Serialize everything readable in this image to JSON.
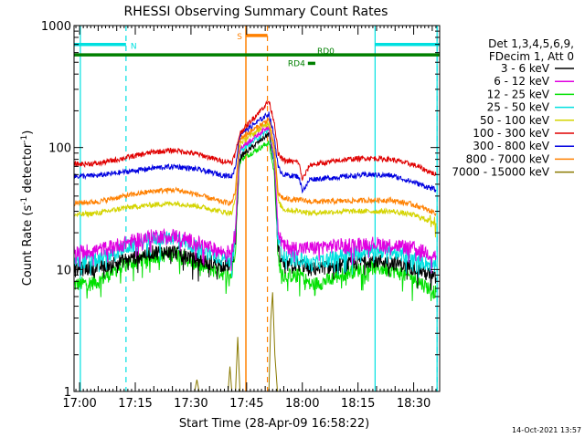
{
  "chart_data": {
    "type": "line",
    "title": "RHESSI Observing Summary Count Rates",
    "xlabel": "Start Time (28-Apr-09 16:58:22)",
    "ylabel": "Count Rate (s⁻¹ detector⁻¹)",
    "ylabel_main": "Count Rate (s",
    "ylabel_sup1": "-1",
    "ylabel_mid": " detector",
    "ylabel_sup2": "-1",
    "ylabel_end": ")",
    "yscale": "log",
    "ylim": [
      1,
      1000
    ],
    "xlim_minutes": [
      -1.5,
      97
    ],
    "x_ticks": [
      {
        "label": "17:00",
        "m": 0
      },
      {
        "label": "17:15",
        "m": 15
      },
      {
        "label": "17:30",
        "m": 30
      },
      {
        "label": "17:45",
        "m": 45
      },
      {
        "label": "18:00",
        "m": 60
      },
      {
        "label": "18:15",
        "m": 75
      },
      {
        "label": "18:30",
        "m": 90
      }
    ],
    "y_ticks": [
      {
        "label": "1",
        "v": 1
      },
      {
        "label": "10",
        "v": 10
      },
      {
        "label": "100",
        "v": 100
      },
      {
        "label": "1000",
        "v": 1000
      }
    ],
    "legend": {
      "placement": "right",
      "header": [
        "Det 1,3,4,5,6,9,",
        "FDecim 1, Att 0"
      ],
      "entries": [
        {
          "label": "3 - 6 keV",
          "color": "#000000"
        },
        {
          "label": "6 - 12 keV",
          "color": "#e000e0"
        },
        {
          "label": "12 - 25 keV",
          "color": "#00e000"
        },
        {
          "label": "25 - 50 keV",
          "color": "#00e0e0"
        },
        {
          "label": "50 - 100 keV",
          "color": "#d4d400"
        },
        {
          "label": "100 - 300 keV",
          "color": "#e00000"
        },
        {
          "label": "300 - 800 keV",
          "color": "#0000e0"
        },
        {
          "label": "800 - 7000 keV",
          "color": "#ff8000"
        },
        {
          "label": "7000 - 15000 keV",
          "color": "#8a7a00"
        }
      ]
    },
    "series": [
      {
        "color": "#00e000",
        "values": [
          [
            -1.5,
            7.5
          ],
          [
            5,
            8
          ],
          [
            12,
            11
          ],
          [
            20,
            13
          ],
          [
            26,
            13.5
          ],
          [
            32,
            11
          ],
          [
            38,
            9.5
          ],
          [
            41,
            9
          ],
          [
            42,
            16
          ],
          [
            43,
            70
          ],
          [
            43.5,
            80
          ],
          [
            51,
            110
          ],
          [
            52.5,
            60
          ],
          [
            53.5,
            12
          ],
          [
            55,
            9
          ],
          [
            60,
            9
          ],
          [
            62,
            7.5
          ],
          [
            66,
            8
          ],
          [
            72,
            9.5
          ],
          [
            78,
            10.5
          ],
          [
            84,
            10
          ],
          [
            90,
            8.5
          ],
          [
            96,
            6.5
          ]
        ]
      },
      {
        "color": "#000000",
        "values": [
          [
            -1.5,
            10
          ],
          [
            5,
            10.5
          ],
          [
            12,
            12
          ],
          [
            20,
            14
          ],
          [
            26,
            14
          ],
          [
            32,
            12
          ],
          [
            38,
            11
          ],
          [
            41,
            11
          ],
          [
            42,
            18
          ],
          [
            43,
            75
          ],
          [
            43.5,
            85
          ],
          [
            51,
            130
          ],
          [
            52.5,
            70
          ],
          [
            53.5,
            14
          ],
          [
            55,
            11
          ],
          [
            60,
            11
          ],
          [
            62,
            10
          ],
          [
            66,
            10.5
          ],
          [
            72,
            11
          ],
          [
            78,
            12
          ],
          [
            84,
            11.5
          ],
          [
            90,
            10.5
          ],
          [
            96,
            8.5
          ]
        ]
      },
      {
        "color": "#00e0e0",
        "values": [
          [
            -1.5,
            11.5
          ],
          [
            5,
            12
          ],
          [
            12,
            15
          ],
          [
            20,
            18
          ],
          [
            26,
            18.5
          ],
          [
            32,
            15
          ],
          [
            38,
            12.5
          ],
          [
            41,
            12
          ],
          [
            42,
            20
          ],
          [
            43,
            85
          ],
          [
            43.5,
            95
          ],
          [
            51,
            140
          ],
          [
            52.5,
            75
          ],
          [
            53.5,
            17
          ],
          [
            55,
            13
          ],
          [
            60,
            12.5
          ],
          [
            62,
            11
          ],
          [
            66,
            12
          ],
          [
            72,
            13.5
          ],
          [
            78,
            14.5
          ],
          [
            84,
            14
          ],
          [
            90,
            12.5
          ],
          [
            96,
            10.5
          ]
        ]
      },
      {
        "color": "#e000e0",
        "values": [
          [
            -1.5,
            14
          ],
          [
            5,
            14.5
          ],
          [
            12,
            16.5
          ],
          [
            20,
            19
          ],
          [
            26,
            19
          ],
          [
            32,
            16.5
          ],
          [
            38,
            14
          ],
          [
            41,
            14
          ],
          [
            42,
            22
          ],
          [
            43,
            90
          ],
          [
            43.5,
            100
          ],
          [
            51,
            150
          ],
          [
            52.5,
            80
          ],
          [
            53.5,
            20
          ],
          [
            55,
            15.5
          ],
          [
            60,
            15
          ],
          [
            62,
            15
          ],
          [
            66,
            15.5
          ],
          [
            72,
            16
          ],
          [
            78,
            16.5
          ],
          [
            84,
            16
          ],
          [
            90,
            15
          ],
          [
            96,
            13
          ]
        ]
      },
      {
        "color": "#d4d400",
        "values": [
          [
            -1.5,
            28
          ],
          [
            5,
            29
          ],
          [
            12,
            32
          ],
          [
            20,
            34
          ],
          [
            26,
            35
          ],
          [
            32,
            33
          ],
          [
            38,
            30
          ],
          [
            41,
            29
          ],
          [
            42,
            38
          ],
          [
            43,
            100
          ],
          [
            43.5,
            110
          ],
          [
            51,
            160
          ],
          [
            52.5,
            90
          ],
          [
            53.5,
            36
          ],
          [
            55,
            31
          ],
          [
            60,
            30
          ],
          [
            62,
            29
          ],
          [
            66,
            29.5
          ],
          [
            72,
            30
          ],
          [
            78,
            30
          ],
          [
            84,
            30
          ],
          [
            90,
            28
          ],
          [
            96,
            24
          ]
        ]
      },
      {
        "color": "#ff8000",
        "values": [
          [
            -1.5,
            35
          ],
          [
            5,
            36
          ],
          [
            12,
            40
          ],
          [
            20,
            44
          ],
          [
            26,
            45
          ],
          [
            32,
            41
          ],
          [
            38,
            36
          ],
          [
            41,
            35
          ],
          [
            42,
            45
          ],
          [
            43,
            110
          ],
          [
            43.5,
            120
          ],
          [
            51,
            170
          ],
          [
            52.5,
            100
          ],
          [
            53.5,
            42
          ],
          [
            55,
            38
          ],
          [
            60,
            37
          ],
          [
            62,
            36
          ],
          [
            66,
            36
          ],
          [
            72,
            36.5
          ],
          [
            78,
            37
          ],
          [
            84,
            37
          ],
          [
            90,
            34
          ],
          [
            96,
            29
          ]
        ]
      },
      {
        "color": "#0000e0",
        "values": [
          [
            -1.5,
            58
          ],
          [
            5,
            59
          ],
          [
            12,
            63
          ],
          [
            20,
            68
          ],
          [
            26,
            70
          ],
          [
            32,
            66
          ],
          [
            38,
            60
          ],
          [
            41,
            58
          ],
          [
            42,
            70
          ],
          [
            43,
            120
          ],
          [
            43.5,
            130
          ],
          [
            51,
            190
          ],
          [
            52.5,
            120
          ],
          [
            53.5,
            68
          ],
          [
            55,
            60
          ],
          [
            59,
            58
          ],
          [
            60,
            45
          ],
          [
            61,
            48
          ],
          [
            62,
            55
          ],
          [
            66,
            56
          ],
          [
            72,
            58
          ],
          [
            78,
            60
          ],
          [
            84,
            59
          ],
          [
            90,
            52
          ],
          [
            96,
            45
          ]
        ]
      },
      {
        "color": "#e00000",
        "values": [
          [
            -1.5,
            73
          ],
          [
            5,
            74
          ],
          [
            12,
            82
          ],
          [
            20,
            92
          ],
          [
            26,
            95
          ],
          [
            32,
            88
          ],
          [
            38,
            78
          ],
          [
            41,
            76
          ],
          [
            42,
            90
          ],
          [
            43,
            125
          ],
          [
            43.5,
            135
          ],
          [
            51,
            240
          ],
          [
            52.5,
            160
          ],
          [
            53.5,
            88
          ],
          [
            55,
            78
          ],
          [
            59,
            76
          ],
          [
            60,
            55
          ],
          [
            61,
            62
          ],
          [
            62,
            72
          ],
          [
            66,
            75
          ],
          [
            72,
            80
          ],
          [
            78,
            82
          ],
          [
            84,
            80
          ],
          [
            90,
            72
          ],
          [
            96,
            60
          ]
        ]
      },
      {
        "color": "#8a7a00",
        "values": [
          [
            31,
            1
          ],
          [
            31.6,
            1.25
          ],
          [
            32.2,
            1
          ],
          [
            40,
            1
          ],
          [
            40.5,
            1.6
          ],
          [
            41,
            1
          ],
          [
            42,
            1
          ],
          [
            42.6,
            2.8
          ],
          [
            43.2,
            1
          ],
          [
            51,
            1
          ],
          [
            51.5,
            3.8
          ],
          [
            52,
            6.5
          ],
          [
            52.6,
            2
          ],
          [
            53.3,
            1
          ]
        ]
      }
    ],
    "annotations": {
      "vlines_cyan_solid_minutes": [
        0.2,
        79.6,
        96.3
      ],
      "vlines_cyan_dashed_minutes": [
        12.5,
        96.3
      ],
      "vlines_orange_solid_minutes": [
        44.8
      ],
      "vlines_orange_dashed_minutes": [
        50.6
      ],
      "bars": [
        {
          "label": "N",
          "color": "#00e0e0",
          "segments": [
            [
              -1.5,
              12.5
            ],
            [
              79.6,
              97
            ]
          ],
          "level": 700
        },
        {
          "label": "S",
          "color": "#ff8000",
          "segments": [
            [
              44.8,
              50.6
            ]
          ],
          "level": 830
        },
        {
          "label": "RD4",
          "color": "#008000",
          "segments": [
            [
              61.5,
              63.5
            ]
          ],
          "level": 490
        },
        {
          "label": "RD0",
          "color": "#008000",
          "segments": [
            [
              -1.5,
              97
            ]
          ],
          "level": 575
        }
      ]
    }
  },
  "footer_date": "14-Oct-2021 13:57"
}
